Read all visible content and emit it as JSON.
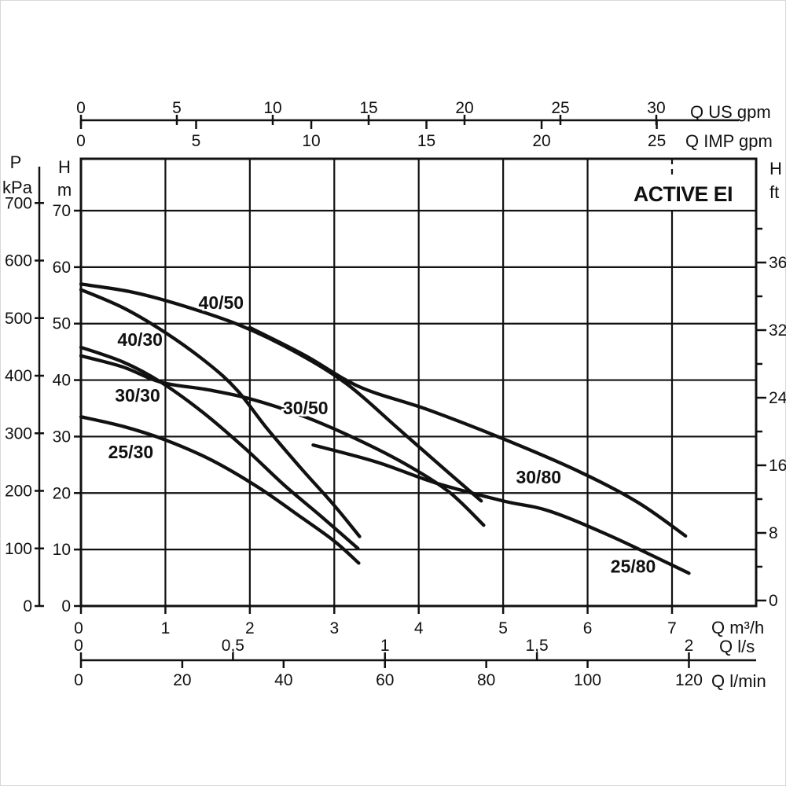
{
  "title": "ACTIVE EI",
  "colors": {
    "ink": "#111111",
    "background": "#ffffff"
  },
  "axes": {
    "top_us": {
      "unit_label": "Q US gpm",
      "ticks": [
        0,
        5,
        10,
        15,
        20,
        25,
        30
      ]
    },
    "top_imp": {
      "unit_label": "Q IMP gpm",
      "ticks": [
        0,
        5,
        10,
        15,
        20,
        25
      ]
    },
    "left_p": {
      "caption_line1": "P",
      "caption_line2": "kPa",
      "ticks": [
        700,
        600,
        500,
        400,
        300,
        200,
        100,
        0
      ]
    },
    "left_h": {
      "caption_line1": "H",
      "caption_line2": "m",
      "ticks": [
        70,
        60,
        50,
        40,
        30,
        20,
        10,
        0
      ]
    },
    "right_ft": {
      "caption_line1": "H",
      "caption_line2": "ft",
      "tick_labels": [
        "0",
        "8",
        "16",
        "24",
        "32",
        "36"
      ]
    },
    "bottom_m3h": {
      "unit_label": "Q m³/h",
      "ticks": [
        0,
        1,
        2,
        3,
        4,
        5,
        6,
        7
      ]
    },
    "bottom_ls": {
      "unit_label": "Q l/s",
      "ticks": [
        "0",
        "0,5",
        "1",
        "1,5",
        "2"
      ],
      "tick_values": [
        0,
        0.5,
        1,
        1.5,
        2
      ]
    },
    "bottom_lmin": {
      "unit_label": "Q l/min",
      "ticks": [
        0,
        20,
        40,
        60,
        80,
        100,
        120
      ]
    }
  },
  "chart_data": {
    "type": "line",
    "title": "ACTIVE EI",
    "xlabel": "Q (m³/h, l/s, l/min, US gpm, IMP gpm)",
    "ylabel": "H (m, ft) / P (kPa)",
    "xlim": [
      0,
      8
    ],
    "ylim_m": [
      0,
      79
    ],
    "grid": "on",
    "x_unit_conversions_to_m3h": {
      "us_gpm": 0.227125,
      "imp_gpm": 0.272766,
      "l_s": 3.6,
      "l_min": 0.06
    },
    "series": [
      {
        "name": "40/50",
        "points": [
          [
            0,
            57
          ],
          [
            0.6,
            55.6
          ],
          [
            1.2,
            53.2
          ],
          [
            1.9,
            49.6
          ],
          [
            2.55,
            44.9
          ],
          [
            3.15,
            39.3
          ],
          [
            3.75,
            31.5
          ],
          [
            4.3,
            24.3
          ],
          [
            4.74,
            18.6
          ]
        ],
        "label": "40/50",
        "label_q": 1.66,
        "label_h": 53.7
      },
      {
        "name": "40/30",
        "points": [
          [
            0,
            56
          ],
          [
            0.5,
            52.8
          ],
          [
            1.0,
            48.4
          ],
          [
            1.5,
            43
          ],
          [
            1.85,
            38.2
          ],
          [
            2.2,
            31.5
          ],
          [
            2.6,
            24.5
          ],
          [
            3.0,
            17.8
          ],
          [
            3.3,
            12.3
          ]
        ],
        "label": "40/30",
        "label_q": 0.7,
        "label_h": 47.2
      },
      {
        "name": "30/30",
        "points": [
          [
            0,
            45.8
          ],
          [
            0.5,
            43.2
          ],
          [
            0.95,
            39.6
          ],
          [
            1.45,
            34.2
          ],
          [
            1.95,
            27.8
          ],
          [
            2.4,
            21.5
          ],
          [
            2.85,
            15.8
          ],
          [
            3.28,
            10.2
          ]
        ],
        "label": "30/30",
        "label_q": 0.67,
        "label_h": 37.3
      },
      {
        "name": "25/30",
        "points": [
          [
            0,
            33.5
          ],
          [
            0.5,
            31.8
          ],
          [
            1.0,
            29.4
          ],
          [
            1.55,
            25.8
          ],
          [
            2.1,
            21
          ],
          [
            2.6,
            15.8
          ],
          [
            3.0,
            11.5
          ],
          [
            3.29,
            7.6
          ]
        ],
        "label": "25/30",
        "label_q": 0.59,
        "label_h": 27.3
      },
      {
        "name": "30/50",
        "points": [
          [
            0,
            44.3
          ],
          [
            0.5,
            42.3
          ],
          [
            0.95,
            39.6
          ],
          [
            1.5,
            38.3
          ],
          [
            2.0,
            36.7
          ],
          [
            2.6,
            33.8
          ],
          [
            3.2,
            30.0
          ],
          [
            3.8,
            25.5
          ],
          [
            4.35,
            20.3
          ],
          [
            4.77,
            14.3
          ]
        ],
        "label": "30/50",
        "label_q": 2.66,
        "label_h": 35.1
      },
      {
        "name": "30/80",
        "points": [
          [
            2.0,
            49.3
          ],
          [
            2.65,
            44.4
          ],
          [
            3.3,
            38.8
          ],
          [
            4.1,
            34.8
          ],
          [
            5.0,
            29.6
          ],
          [
            5.9,
            23.8
          ],
          [
            6.6,
            18.3
          ],
          [
            7.16,
            12.4
          ]
        ],
        "label": "30/80",
        "label_q": 5.42,
        "label_h": 22.8
      },
      {
        "name": "25/80",
        "points": [
          [
            2.75,
            28.5
          ],
          [
            3.5,
            25.5
          ],
          [
            4.2,
            21.8
          ],
          [
            5.0,
            18.6
          ],
          [
            5.55,
            16.8
          ],
          [
            6.3,
            12.2
          ],
          [
            7.2,
            5.8
          ]
        ],
        "label": "25/80",
        "label_q": 6.54,
        "label_h": 7.0
      }
    ]
  }
}
